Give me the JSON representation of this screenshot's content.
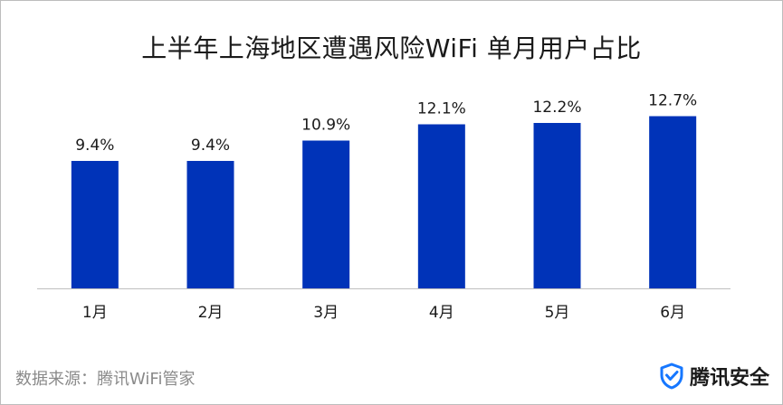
{
  "chart_data": {
    "type": "bar",
    "title": "上半年上海地区遭遇风险WiFi 单月用户占比",
    "categories": [
      "1月",
      "2月",
      "3月",
      "4月",
      "5月",
      "6月"
    ],
    "values": [
      9.4,
      9.4,
      10.9,
      12.1,
      12.2,
      12.7
    ],
    "data_labels": [
      "9.4%",
      "9.4%",
      "10.9%",
      "12.1%",
      "12.2%",
      "12.7%"
    ],
    "ylim": [
      0,
      13.2
    ],
    "grid": false,
    "xlabel": "",
    "ylabel": "",
    "bar_color": "#0033b8"
  },
  "footer": {
    "source": "数据来源：腾讯WiFi管家",
    "logo_text": "腾讯安全",
    "logo_icon": "shield-check-icon"
  }
}
